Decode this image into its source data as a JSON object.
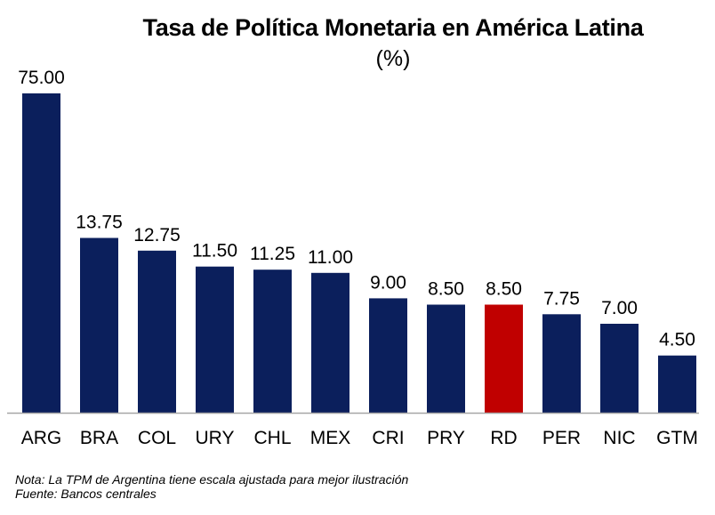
{
  "chart_data": {
    "type": "bar",
    "title": "Tasa de Política Monetaria en América Latina",
    "subtitle": "(%)",
    "categories": [
      "ARG",
      "BRA",
      "COL",
      "URY",
      "CHL",
      "MEX",
      "CRI",
      "PRY",
      "RD",
      "PER",
      "NIC",
      "GTM"
    ],
    "values": [
      75.0,
      13.75,
      12.75,
      11.5,
      11.25,
      11.0,
      9.0,
      8.5,
      8.5,
      7.75,
      7.0,
      4.5
    ],
    "value_labels": [
      "75.00",
      "13.75",
      "12.75",
      "11.50",
      "11.25",
      "11.00",
      "9.00",
      "8.50",
      "8.50",
      "7.75",
      "7.00",
      "4.50"
    ],
    "highlight_category": "RD",
    "colors": {
      "bar": "#0b1f5c",
      "highlight": "#c00000",
      "axis": "#a6a6a6"
    },
    "grid": false,
    "legend": "none"
  },
  "notes": {
    "line1": "Nota: La TPM de Argentina tiene escala ajustada para mejor ilustración",
    "line2": "Fuente: Bancos centrales"
  }
}
